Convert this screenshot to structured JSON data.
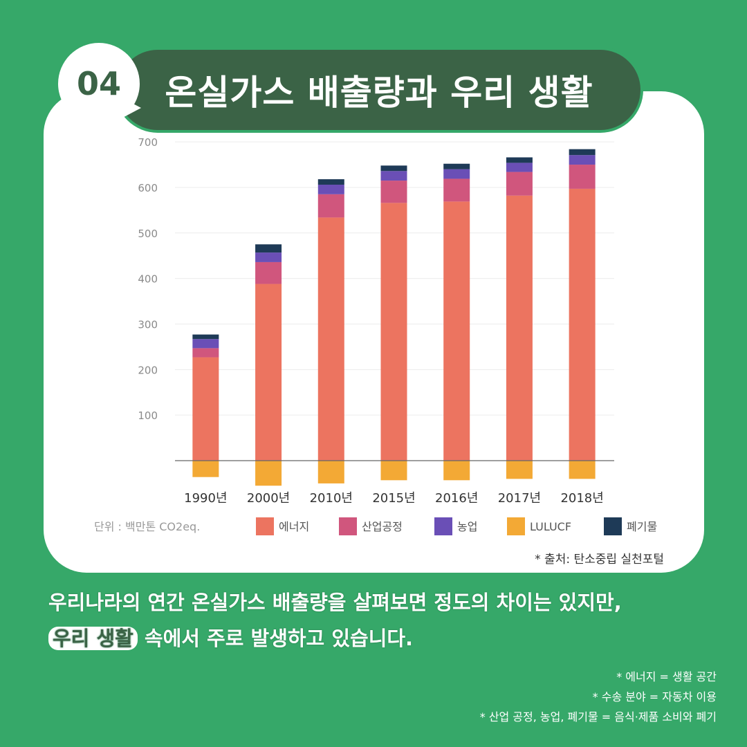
{
  "badge": {
    "number": "04"
  },
  "title": "온실가스 배출량과 우리 생활",
  "chart_data": {
    "type": "bar",
    "stacked": true,
    "categories": [
      "1990년",
      "2000년",
      "2010년",
      "2015년",
      "2016년",
      "2017년",
      "2018년"
    ],
    "series": [
      {
        "name": "에너지",
        "color": "#ec7460",
        "values": [
          227,
          388,
          534,
          566,
          569,
          582,
          597
        ]
      },
      {
        "name": "산업공정",
        "color": "#d0567d",
        "values": [
          20,
          48,
          51,
          49,
          50,
          52,
          53
        ]
      },
      {
        "name": "농업",
        "color": "#6a4fb6",
        "values": [
          20,
          21,
          21,
          21,
          21,
          20,
          21
        ]
      },
      {
        "name": "LULUCF",
        "color": "#f3a935",
        "values": [
          -36,
          -55,
          -50,
          -43,
          -43,
          -40,
          -40
        ]
      },
      {
        "name": "폐기물",
        "color": "#1e3a57",
        "values": [
          10,
          18,
          12,
          12,
          12,
          12,
          13
        ]
      }
    ],
    "yticks": [
      100,
      200,
      300,
      400,
      500,
      600,
      700
    ],
    "ylim": [
      -55,
      700
    ],
    "unit_label": "단위 : 백만톤 CO2eq.",
    "legend_position": "bottom",
    "grid": true
  },
  "source": "* 출처: 탄소중립 실천포털",
  "summary": {
    "line1": "우리나라의 연간 온실가스 배출량을 살펴보면 정도의 차이는 있지만,",
    "highlight": "우리 생활",
    "line2_rest": " 속에서 주로 발생하고 있습니다."
  },
  "notes": [
    "* 에너지 = 생활 공간",
    "* 수송 분야 = 자동차 이용",
    "* 산업 공정, 농업, 폐기물 = 음식·제품 소비와 폐기"
  ]
}
